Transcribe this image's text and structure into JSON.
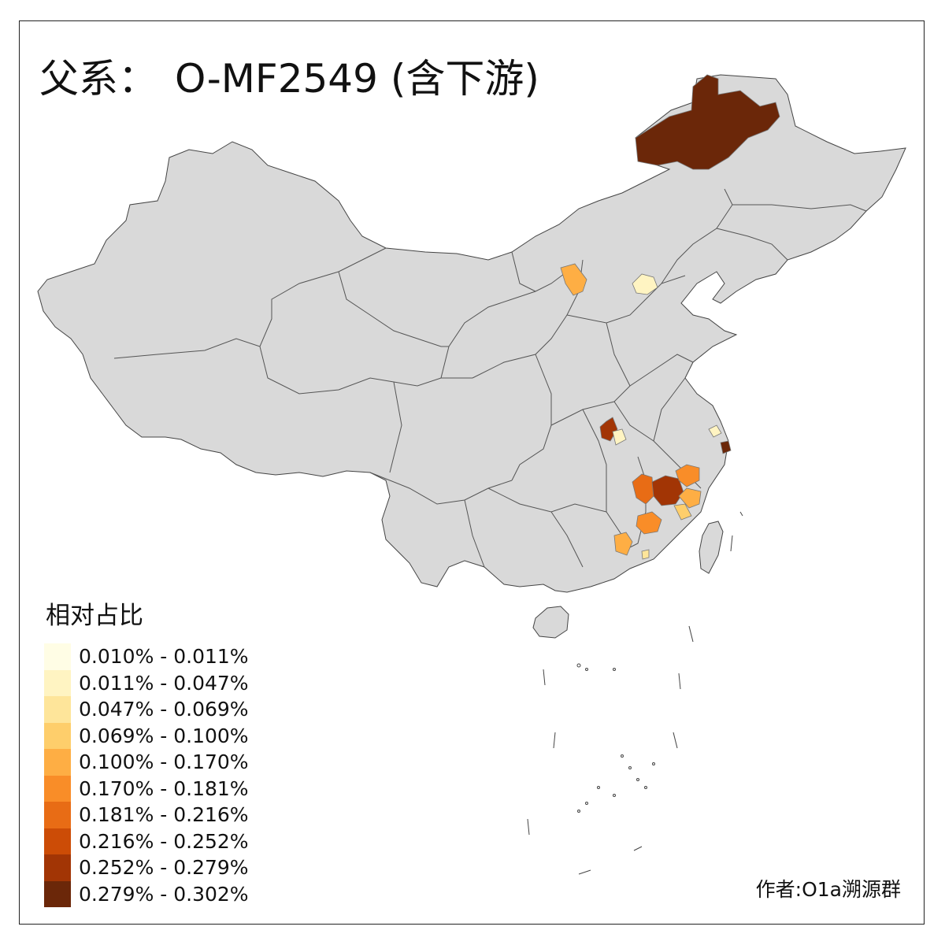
{
  "title_prefix": "父系：",
  "title_main": "O-MF2549 (含下游)",
  "legend": {
    "title": "相对占比",
    "items": [
      {
        "label": "0.010% - 0.011%",
        "color": "#FFFDE5"
      },
      {
        "label": "0.011% - 0.047%",
        "color": "#FFF4C2"
      },
      {
        "label": "0.047% - 0.069%",
        "color": "#FEE59A"
      },
      {
        "label": "0.069% - 0.100%",
        "color": "#FECE6B"
      },
      {
        "label": "0.100% - 0.170%",
        "color": "#FEAE44"
      },
      {
        "label": "0.170% - 0.181%",
        "color": "#F98D28"
      },
      {
        "label": "0.181% - 0.216%",
        "color": "#E86C15"
      },
      {
        "label": "0.216% - 0.252%",
        "color": "#CC4C06"
      },
      {
        "label": "0.252% - 0.279%",
        "color": "#A23505"
      },
      {
        "label": "0.279% - 0.302%",
        "color": "#6B2709"
      }
    ]
  },
  "credit": "作者:O1a溯源群",
  "colors": {
    "land": "#D9D9D9",
    "border": "#444444",
    "background": "#FFFFFF"
  }
}
